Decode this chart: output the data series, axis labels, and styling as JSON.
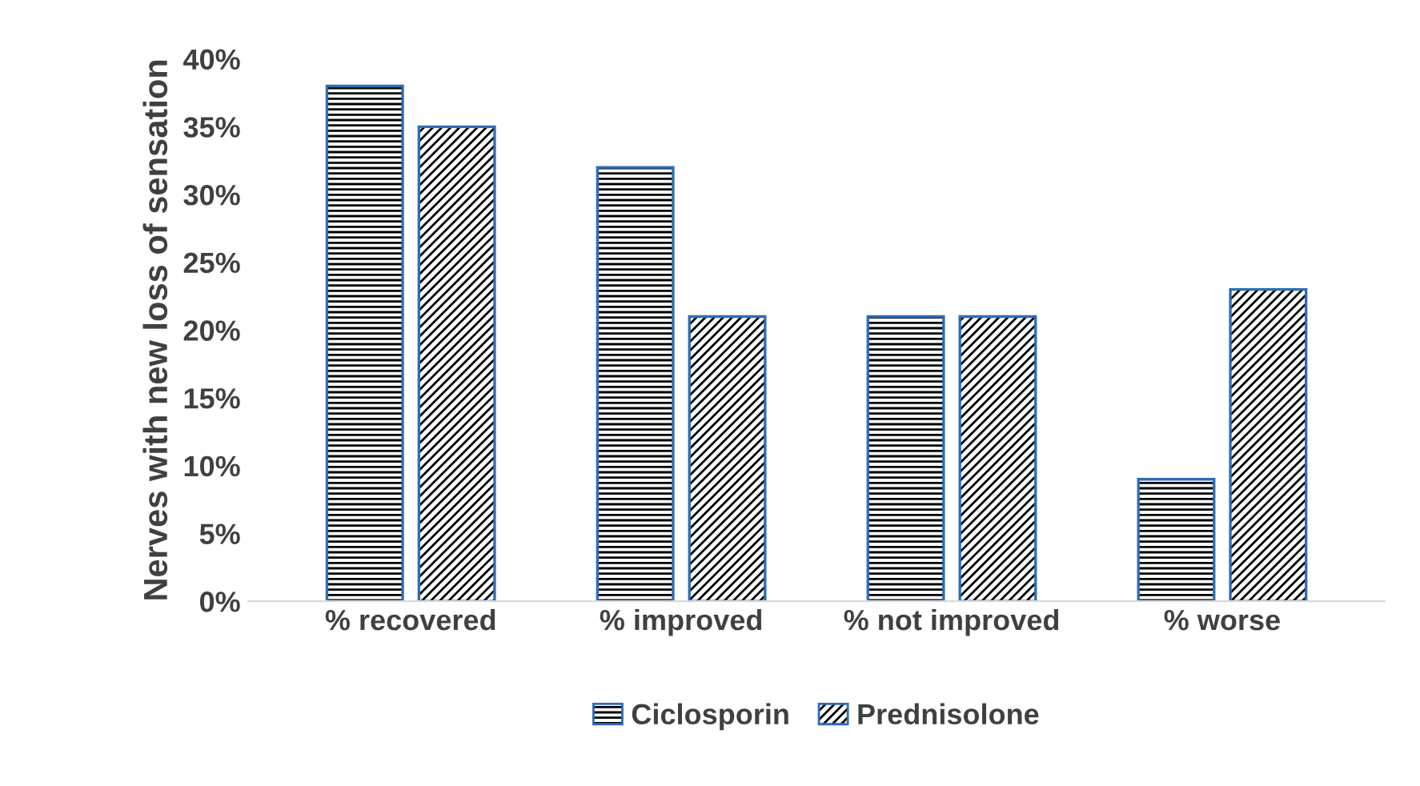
{
  "chart_data": {
    "type": "bar",
    "ylabel": "Nerves with new loss of sensation",
    "categories": [
      "% recovered",
      "% improved",
      "% not improved",
      "% worse"
    ],
    "series": [
      {
        "name": "Ciclosporin",
        "color": "#2e6db4",
        "values": [
          38,
          32,
          21,
          9
        ]
      },
      {
        "name": "Prednisolone",
        "color": "#2e6db4",
        "values": [
          35,
          21,
          21,
          23
        ]
      }
    ],
    "ylim": [
      0,
      40
    ],
    "yticks": [
      {
        "value": 0,
        "label": "0%"
      },
      {
        "value": 5,
        "label": "5%"
      },
      {
        "value": 10,
        "label": "10%"
      },
      {
        "value": 15,
        "label": "15%"
      },
      {
        "value": 20,
        "label": "20%"
      },
      {
        "value": 25,
        "label": "25%"
      },
      {
        "value": 30,
        "label": "30%"
      },
      {
        "value": 35,
        "label": "35%"
      },
      {
        "value": 40,
        "label": "40%"
      }
    ],
    "grid": false,
    "legend": "bottom"
  }
}
